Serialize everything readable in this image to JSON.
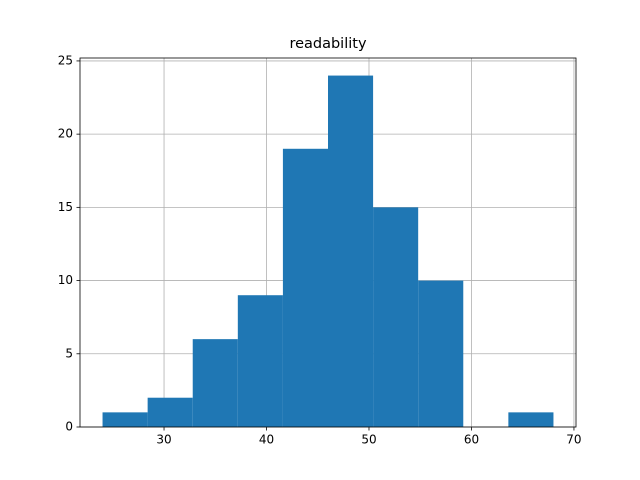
{
  "chart_data": {
    "type": "histogram",
    "title": "readability",
    "bins": [
      24,
      28.4,
      32.8,
      37.2,
      41.6,
      46,
      50.4,
      54.8,
      59.2,
      63.6,
      68
    ],
    "values": [
      1,
      2,
      6,
      9,
      19,
      24,
      15,
      10,
      0,
      1
    ],
    "color": "#1f77b4",
    "xlim": [
      21.8,
      70.2
    ],
    "xticks": [
      30,
      40,
      50,
      60,
      70
    ],
    "ylim": [
      0,
      25.2
    ],
    "yticks": [
      0,
      5,
      10,
      15,
      20,
      25
    ],
    "grid": true
  }
}
